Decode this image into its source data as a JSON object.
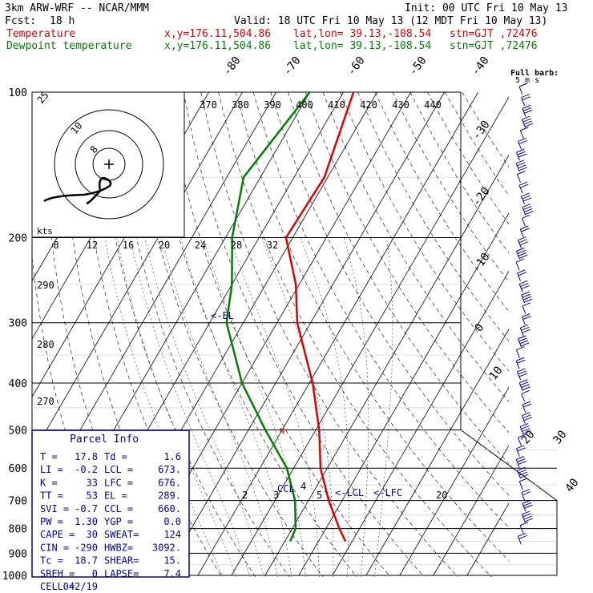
{
  "header": {
    "model": "3km ARW-WRF -- NCAR/MMM",
    "init": "Init: 00 UTC Fri 10 May 13",
    "fcst_label": "Fcst:",
    "fcst_value": "18 h",
    "valid": "Valid: 18 UTC Fri 10 May 13 (12 MDT Fri 10 May 13)",
    "temp_line": {
      "name": "Temperature",
      "xy": "x,y=176.11,504.86",
      "latlon": "lat,lon= 39.13,-108.54",
      "stn": "stn=GJT ,72476"
    },
    "dew_line": {
      "name": "Dewpoint temperature",
      "xy": "x,y=176.11,504.86",
      "latlon": "lat,lon= 39.13,-108.54",
      "stn": "stn=GJT ,72476"
    }
  },
  "colors": {
    "temperature": "#e00000",
    "dewpoint": "#008000",
    "wind": "#0000aa",
    "parcel_box": "#0000aa"
  },
  "chart_data": {
    "type": "line",
    "subtype": "skew-t log-p",
    "pressure_levels": [
      "100",
      "200",
      "300",
      "400",
      "500",
      "600",
      "700",
      "800",
      "900",
      "1000"
    ],
    "isotherm_labels": [
      "-80",
      "-70",
      "-60",
      "-50",
      "-40",
      "-30",
      "-20",
      "-10",
      "0",
      "10",
      "20",
      "30",
      "40"
    ],
    "theta_labels": [
      "370",
      "380",
      "390",
      "400",
      "410",
      "420",
      "430",
      "440"
    ],
    "hodo_speed_labels": [
      "8",
      "12",
      "16",
      "20",
      "24",
      "28",
      "32"
    ],
    "aux_labels": [
      "290",
      "280",
      "270",
      "2",
      "3",
      "4",
      "5",
      "20"
    ],
    "hodograph": {
      "rings": [
        "25",
        "10",
        "8"
      ],
      "unit": "kts"
    },
    "markers": [
      "<-EL",
      "CCL",
      "<-LCL",
      "<-LFC"
    ],
    "series": [
      {
        "name": "Temperature",
        "points": [
          [
            100,
            -57
          ],
          [
            150,
            -51
          ],
          [
            200,
            -52
          ],
          [
            250,
            -41
          ],
          [
            300,
            -34
          ],
          [
            400,
            -19
          ],
          [
            500,
            -9
          ],
          [
            600,
            -2
          ],
          [
            700,
            6
          ],
          [
            800,
            14
          ],
          [
            850,
            18
          ]
        ]
      },
      {
        "name": "Dewpoint temperature",
        "points": [
          [
            100,
            -70
          ],
          [
            150,
            -75
          ],
          [
            200,
            -68
          ],
          [
            250,
            -60
          ],
          [
            300,
            -55
          ],
          [
            400,
            -40
          ],
          [
            500,
            -25
          ],
          [
            600,
            -12
          ],
          [
            700,
            -4
          ],
          [
            800,
            1
          ],
          [
            850,
            1.6
          ]
        ]
      }
    ],
    "wind_barb_title": "Full barb:",
    "wind_barb_unit": "5 m s",
    "wind_barb_count": 42
  },
  "parcel_info": {
    "title": "Parcel Info",
    "rows": [
      [
        "T  =",
        "17.8",
        "Td =",
        "1.6"
      ],
      [
        "LI =",
        "-0.2",
        "LCL =",
        "673."
      ],
      [
        "K  =",
        "33",
        "LFC =",
        "676."
      ],
      [
        "TT =",
        "53",
        "EL  =",
        "289."
      ],
      [
        "SVI =",
        "-0.7",
        "CCL =",
        "660."
      ],
      [
        "PW  =",
        "1.30",
        "YGP =",
        "0.0"
      ],
      [
        "CAPE =",
        "30",
        "SWEAT=",
        "124"
      ],
      [
        "CIN  =",
        "-290",
        "HWBZ=",
        "3092."
      ],
      [
        "Tc   =",
        "18.7",
        "SHEAR=",
        "15."
      ],
      [
        "SREH =",
        "0",
        "LAPSE=",
        "7.4"
      ],
      [
        "CELL =",
        "042/19",
        "",
        ""
      ]
    ]
  }
}
